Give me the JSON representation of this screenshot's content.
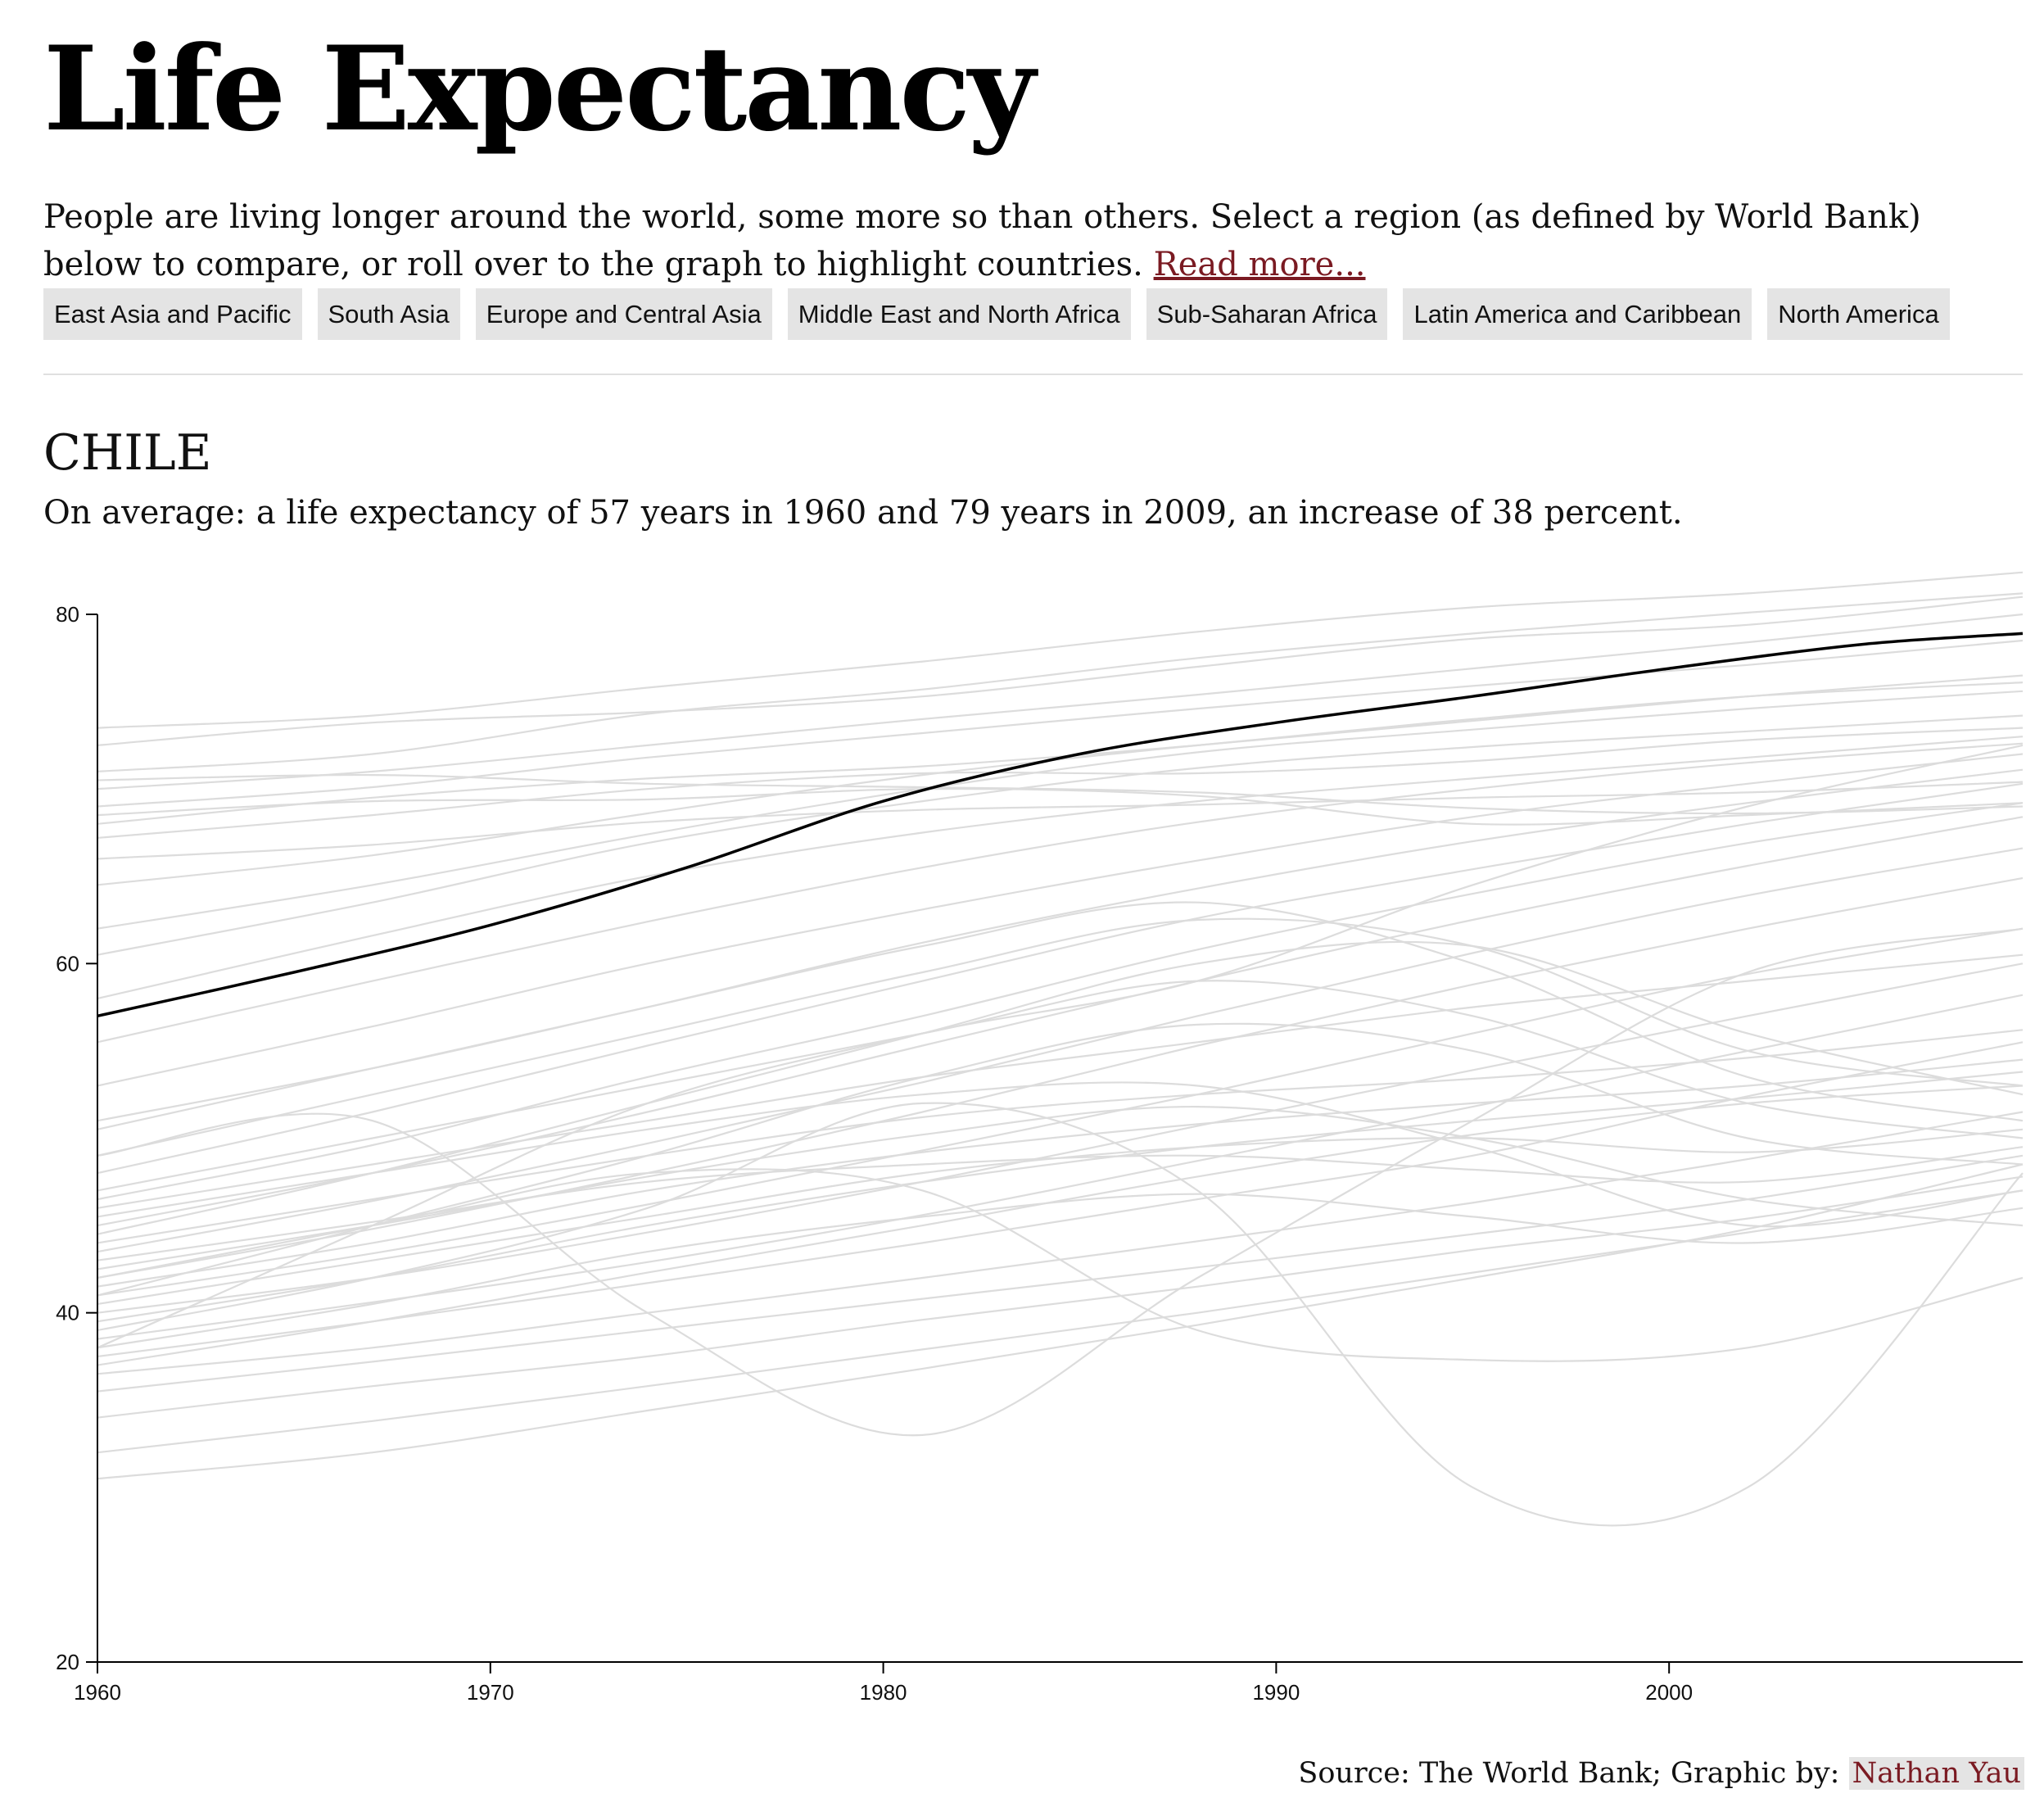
{
  "header": {
    "title": "Life Expectancy",
    "intro": "People are living longer around the world, some more so than others. Select a region (as defined by World Bank) below to compare, or roll over to the graph to highlight countries.",
    "read_more": "Read more..."
  },
  "regions": [
    "East Asia and Pacific",
    "South Asia",
    "Europe and Central Asia",
    "Middle East and North Africa",
    "Sub-Saharan Africa",
    "Latin America and Caribbean",
    "North America"
  ],
  "selection": {
    "country": "CHILE",
    "description": "On average: a life expectancy of 57 years in 1960 and 79 years in 2009, an increase of 38 percent."
  },
  "footer": {
    "source_prefix": "Source: The World Bank; Graphic by:",
    "author": "Nathan Yau"
  },
  "colors": {
    "background_line": "#dcdcdc",
    "highlight_line": "#000000",
    "link": "#7a1a22",
    "button_bg": "#e4e4e4"
  },
  "chart_data": {
    "type": "line",
    "title": "",
    "xlabel": "",
    "ylabel": "",
    "xlim": [
      1960,
      2009
    ],
    "ylim": [
      20,
      80
    ],
    "xticks": [
      1960,
      1970,
      1980,
      1990,
      2000
    ],
    "yticks": [
      20,
      40,
      60,
      80
    ],
    "grid": false,
    "highlight": {
      "name": "Chile",
      "x": [
        1960,
        1965,
        1970,
        1975,
        1980,
        1985,
        1990,
        1995,
        2000,
        2005,
        2009
      ],
      "y": [
        57,
        59.5,
        62.2,
        65.5,
        69.3,
        72,
        73.8,
        75.3,
        76.9,
        78.3,
        78.9
      ]
    },
    "series": [
      {
        "values": [
          73.5,
          74.2,
          75.8,
          77.3,
          79.0,
          80.4,
          81.2,
          82.4
        ]
      },
      {
        "values": [
          71.0,
          72.0,
          74.3,
          75.7,
          77.5,
          78.9,
          80.1,
          81.2
        ]
      },
      {
        "values": [
          70.0,
          71.0,
          72.5,
          74.0,
          75.4,
          76.9,
          78.4,
          80.0
        ]
      },
      {
        "values": [
          69.0,
          70.1,
          71.8,
          73.2,
          74.6,
          75.9,
          77.1,
          78.5
        ]
      },
      {
        "values": [
          68.0,
          69.5,
          70.6,
          71.3,
          72.5,
          73.9,
          75.3,
          76.5
        ]
      },
      {
        "values": [
          72.5,
          73.8,
          74.4,
          75.3,
          77.0,
          78.6,
          79.4,
          81.0
        ]
      },
      {
        "values": [
          67.2,
          68.5,
          70.0,
          70.9,
          70.9,
          71.6,
          72.8,
          73.5
        ]
      },
      {
        "values": [
          66.0,
          66.8,
          68.1,
          68.8,
          69.1,
          69.5,
          69.8,
          70.4
        ]
      },
      {
        "values": [
          70.5,
          70.8,
          70.3,
          70.1,
          69.8,
          68.9,
          68.6,
          69.0
        ]
      },
      {
        "values": [
          68.5,
          69.3,
          69.4,
          70.0,
          69.6,
          68.0,
          68.5,
          69.2
        ]
      },
      {
        "values": [
          64.5,
          66.2,
          68.6,
          70.8,
          72.5,
          74.0,
          75.3,
          76.1
        ]
      },
      {
        "values": [
          62.0,
          64.5,
          67.4,
          70.0,
          72.1,
          73.4,
          74.6,
          75.6
        ]
      },
      {
        "values": [
          60.5,
          63.5,
          66.9,
          69.3,
          71.2,
          72.4,
          73.3,
          74.2
        ]
      },
      {
        "values": [
          58.0,
          61.6,
          65.0,
          67.5,
          69.3,
          70.6,
          71.8,
          73.0
        ]
      },
      {
        "values": [
          55.5,
          59.0,
          62.4,
          65.5,
          68.1,
          70.0,
          71.5,
          72.6
        ]
      },
      {
        "values": [
          53.0,
          56.4,
          60.0,
          63.1,
          65.9,
          68.4,
          70.3,
          72.0
        ]
      },
      {
        "values": [
          50.5,
          54.0,
          57.5,
          61.2,
          64.3,
          67.0,
          69.2,
          71.1
        ]
      },
      {
        "values": [
          48.0,
          51.5,
          55.3,
          59.0,
          62.6,
          65.4,
          68.0,
          70.3
        ]
      },
      {
        "values": [
          46.5,
          49.6,
          53.5,
          57.0,
          60.8,
          64.0,
          66.9,
          69.2
        ]
      },
      {
        "values": [
          45.0,
          48.0,
          51.5,
          55.3,
          59.0,
          62.5,
          65.6,
          68.4
        ]
      },
      {
        "values": [
          43.5,
          46.4,
          49.7,
          53.2,
          57.0,
          60.6,
          63.9,
          66.6
        ]
      },
      {
        "values": [
          42.0,
          44.8,
          48.0,
          51.5,
          55.3,
          58.8,
          62.0,
          64.9
        ]
      },
      {
        "values": [
          41.0,
          43.4,
          46.2,
          49.3,
          52.5,
          56.0,
          59.4,
          62.0
        ]
      },
      {
        "values": [
          40.0,
          42.0,
          44.6,
          47.5,
          50.7,
          53.9,
          57.0,
          60.0
        ]
      },
      {
        "values": [
          38.5,
          40.6,
          42.9,
          45.6,
          48.7,
          51.8,
          55.0,
          58.2
        ]
      },
      {
        "values": [
          37.5,
          39.5,
          41.7,
          44.0,
          46.5,
          49.0,
          52.4,
          55.5
        ]
      },
      {
        "values": [
          36.5,
          38.0,
          40.0,
          42.0,
          44.1,
          46.3,
          48.8,
          51.5
        ]
      },
      {
        "values": [
          35.5,
          37.2,
          39.0,
          40.8,
          42.6,
          44.5,
          46.5,
          49.0
        ]
      },
      {
        "values": [
          34.0,
          35.8,
          37.5,
          39.6,
          41.5,
          43.6,
          45.4,
          47.8
        ]
      },
      {
        "values": [
          32.0,
          33.8,
          35.8,
          37.9,
          40.0,
          42.3,
          44.6,
          47.0
        ]
      },
      {
        "values": [
          30.5,
          32.0,
          34.4,
          36.8,
          39.3,
          42.0,
          44.8,
          48.5
        ]
      },
      {
        "values": [
          41.5,
          44.0,
          47.0,
          49.2,
          50.8,
          52.0,
          53.0,
          54.5
        ]
      },
      {
        "values": [
          39.5,
          42.0,
          45.0,
          47.5,
          49.5,
          51.0,
          52.3,
          53.8
        ]
      },
      {
        "values": [
          44.0,
          46.5,
          49.0,
          51.2,
          52.5,
          53.4,
          54.6,
          56.2
        ]
      },
      {
        "values": [
          37.0,
          39.5,
          42.3,
          45.0,
          47.8,
          50.2,
          52.0,
          53.0
        ]
      },
      {
        "values": [
          46.0,
          48.5,
          51.0,
          53.5,
          55.5,
          57.5,
          59.0,
          60.5
        ]
      },
      {
        "values": [
          40.5,
          43.0,
          45.5,
          48.0,
          49.5,
          50.0,
          49.2,
          50.5
        ]
      },
      {
        "values": [
          43.0,
          45.2,
          47.5,
          48.5,
          49.0,
          48.2,
          47.5,
          49.5
        ]
      },
      {
        "values": [
          38.0,
          40.5,
          43.5,
          45.5,
          46.8,
          45.5,
          44.0,
          46.0
        ]
      },
      {
        "values": [
          42.5,
          45.0,
          47.8,
          50.2,
          51.8,
          50.0,
          46.5,
          45.0
        ]
      },
      {
        "values": [
          45.5,
          48.0,
          50.5,
          52.5,
          53.0,
          49.5,
          45.0,
          47.0
        ]
      },
      {
        "values": [
          41.0,
          45.0,
          49.0,
          53.5,
          56.5,
          55.0,
          50.0,
          48.5
        ]
      },
      {
        "values": [
          47.0,
          50.0,
          53.0,
          56.0,
          59.0,
          57.0,
          52.0,
          50.0
        ]
      },
      {
        "values": [
          44.5,
          48.0,
          52.0,
          56.0,
          60.0,
          61.0,
          56.0,
          52.5
        ]
      },
      {
        "values": [
          49.0,
          52.5,
          56.0,
          59.5,
          62.5,
          61.0,
          55.0,
          53.0
        ]
      },
      {
        "values": [
          51.0,
          54.0,
          57.5,
          61.0,
          63.5,
          60.0,
          53.5,
          51.0
        ]
      },
      {
        "values": [
          38.0,
          45.0,
          52.0,
          56.0,
          59.0,
          64.5,
          69.0,
          72.5
        ]
      },
      {
        "values": [
          49.0,
          51.0,
          40.0,
          33.0,
          42.0,
          51.0,
          59.5,
          62.0
        ]
      },
      {
        "values": [
          42.0,
          45.0,
          48.0,
          47.0,
          39.0,
          37.3,
          38.0,
          42.0
        ]
      },
      {
        "values": [
          39.0,
          42.0,
          46.0,
          52.0,
          47.0,
          30.0,
          30.0,
          48.0
        ]
      }
    ]
  }
}
